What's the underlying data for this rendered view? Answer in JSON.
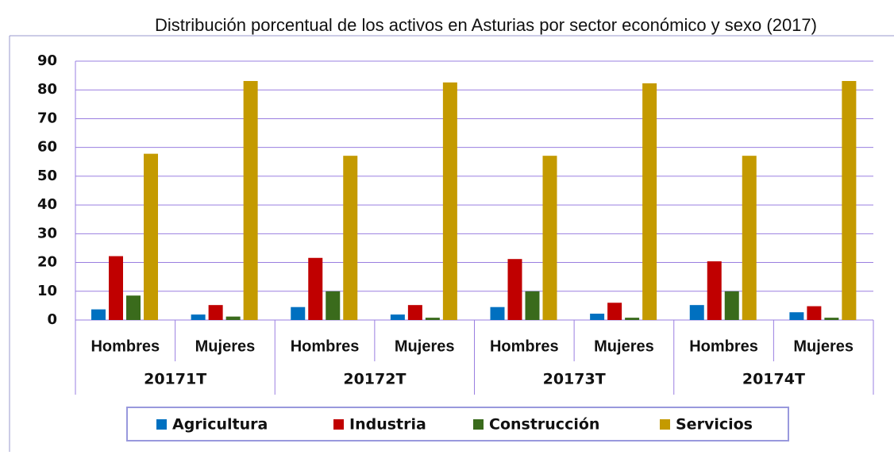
{
  "chart_data": {
    "type": "bar",
    "title": "Distribución porcentual de los activos en Asturias por sector económico y sexo  (2017)",
    "categories": [
      "Hombres",
      "Mujeres",
      "Hombres",
      "Mujeres",
      "Hombres",
      "Mujeres",
      "Hombres",
      "Mujeres"
    ],
    "groups": [
      "20171T",
      "20172T",
      "20173T",
      "20174T"
    ],
    "series": [
      {
        "name": "Agricultura",
        "color": "#0070c0",
        "values": [
          3.7,
          1.9,
          4.5,
          1.9,
          4.5,
          2.2,
          5.2,
          2.7
        ]
      },
      {
        "name": "Industria",
        "color": "#c00000",
        "values": [
          22.2,
          5.2,
          21.6,
          5.2,
          21.2,
          6.0,
          20.4,
          4.8
        ]
      },
      {
        "name": "Construcción",
        "color": "#3a6b1c",
        "values": [
          8.5,
          1.2,
          10.0,
          0.8,
          10.0,
          0.8,
          10.0,
          0.8
        ]
      },
      {
        "name": "Servicios",
        "color": "#c49a00",
        "values": [
          57.8,
          83.1,
          57.1,
          82.6,
          57.1,
          82.3,
          57.1,
          83.1
        ]
      }
    ],
    "ylim": [
      0,
      90
    ],
    "yticks": [
      0,
      10,
      20,
      30,
      40,
      50,
      60,
      70,
      80,
      90
    ],
    "grid": true,
    "legend": "bottom"
  }
}
